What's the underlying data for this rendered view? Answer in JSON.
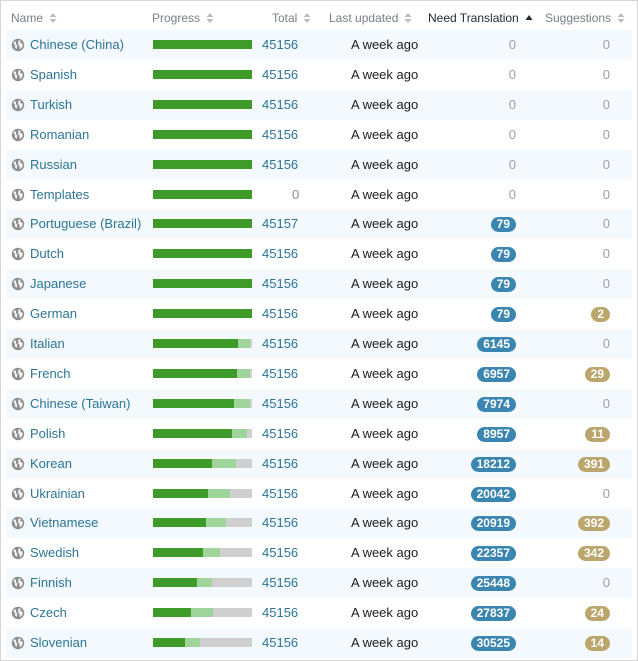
{
  "table": {
    "headers": {
      "name": "Name",
      "progress": "Progress",
      "total": "Total",
      "last_updated": "Last updated",
      "need_translation": "Need Translation",
      "suggestions": "Suggestions"
    },
    "sorted_column": "need_translation",
    "sort_direction": "ascending",
    "colors": {
      "link": "#2c7597",
      "translated": "#3e9b2a",
      "fuzzy": "#9fd59a",
      "untranslated": "#cfcfcf",
      "need_badge": "#3b86b0",
      "suggestion_badge": "#bba76d",
      "row_stripe": "#f3f9fc"
    },
    "rows": [
      {
        "name": "Chinese (China)",
        "translated": 1.0,
        "fuzzy": 0.0,
        "total": "45156",
        "updated": "A week ago",
        "need": "0",
        "suggestions": "0"
      },
      {
        "name": "Spanish",
        "translated": 1.0,
        "fuzzy": 0.0,
        "total": "45156",
        "updated": "A week ago",
        "need": "0",
        "suggestions": "0"
      },
      {
        "name": "Turkish",
        "translated": 1.0,
        "fuzzy": 0.0,
        "total": "45156",
        "updated": "A week ago",
        "need": "0",
        "suggestions": "0"
      },
      {
        "name": "Romanian",
        "translated": 1.0,
        "fuzzy": 0.0,
        "total": "45156",
        "updated": "A week ago",
        "need": "0",
        "suggestions": "0"
      },
      {
        "name": "Russian",
        "translated": 1.0,
        "fuzzy": 0.0,
        "total": "45156",
        "updated": "A week ago",
        "need": "0",
        "suggestions": "0"
      },
      {
        "name": "Templates",
        "translated": 1.0,
        "fuzzy": 0.0,
        "total": "0",
        "updated": "A week ago",
        "need": "0",
        "suggestions": "0"
      },
      {
        "name": "Portuguese (Brazil)",
        "translated": 1.0,
        "fuzzy": 0.0,
        "total": "45157",
        "updated": "A week ago",
        "need": "79",
        "suggestions": "0"
      },
      {
        "name": "Dutch",
        "translated": 1.0,
        "fuzzy": 0.0,
        "total": "45156",
        "updated": "A week ago",
        "need": "79",
        "suggestions": "0"
      },
      {
        "name": "Japanese",
        "translated": 1.0,
        "fuzzy": 0.0,
        "total": "45156",
        "updated": "A week ago",
        "need": "79",
        "suggestions": "0"
      },
      {
        "name": "German",
        "translated": 1.0,
        "fuzzy": 0.0,
        "total": "45156",
        "updated": "A week ago",
        "need": "79",
        "suggestions": "2"
      },
      {
        "name": "Italian",
        "translated": 0.86,
        "fuzzy": 0.12,
        "total": "45156",
        "updated": "A week ago",
        "need": "6145",
        "suggestions": "0"
      },
      {
        "name": "French",
        "translated": 0.85,
        "fuzzy": 0.13,
        "total": "45156",
        "updated": "A week ago",
        "need": "6957",
        "suggestions": "29"
      },
      {
        "name": "Chinese (Taiwan)",
        "translated": 0.82,
        "fuzzy": 0.16,
        "total": "45156",
        "updated": "A week ago",
        "need": "7974",
        "suggestions": "0"
      },
      {
        "name": "Polish",
        "translated": 0.8,
        "fuzzy": 0.15,
        "total": "45156",
        "updated": "A week ago",
        "need": "8957",
        "suggestions": "11"
      },
      {
        "name": "Korean",
        "translated": 0.6,
        "fuzzy": 0.24,
        "total": "45156",
        "updated": "A week ago",
        "need": "18212",
        "suggestions": "391"
      },
      {
        "name": "Ukrainian",
        "translated": 0.56,
        "fuzzy": 0.22,
        "total": "45156",
        "updated": "A week ago",
        "need": "20042",
        "suggestions": "0"
      },
      {
        "name": "Vietnamese",
        "translated": 0.54,
        "fuzzy": 0.2,
        "total": "45156",
        "updated": "A week ago",
        "need": "20919",
        "suggestions": "392"
      },
      {
        "name": "Swedish",
        "translated": 0.5,
        "fuzzy": 0.17,
        "total": "45156",
        "updated": "A week ago",
        "need": "22357",
        "suggestions": "342"
      },
      {
        "name": "Finnish",
        "translated": 0.44,
        "fuzzy": 0.15,
        "total": "45156",
        "updated": "A week ago",
        "need": "25448",
        "suggestions": "0"
      },
      {
        "name": "Czech",
        "translated": 0.38,
        "fuzzy": 0.22,
        "total": "45156",
        "updated": "A week ago",
        "need": "27837",
        "suggestions": "24"
      },
      {
        "name": "Slovenian",
        "translated": 0.32,
        "fuzzy": 0.15,
        "total": "45156",
        "updated": "A week ago",
        "need": "30525",
        "suggestions": "14"
      }
    ]
  }
}
